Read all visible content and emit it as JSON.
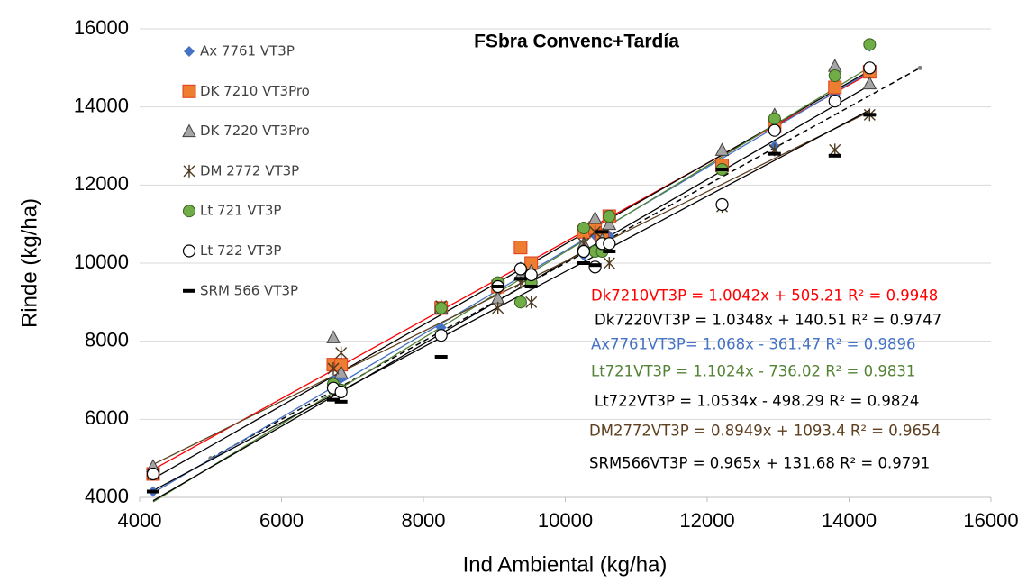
{
  "chart_data": {
    "type": "scatter",
    "title": "FSbra Convenc+Tardía",
    "x_label": "Ind Ambiental (kg/ha)",
    "y_label": "Rinde (kg/ha)",
    "xlim": [
      4000,
      16000
    ],
    "ylim": [
      4000,
      16000
    ],
    "xticks": [
      4000,
      6000,
      8000,
      10000,
      12000,
      14000,
      16000
    ],
    "yticks": [
      4000,
      6000,
      8000,
      10000,
      12000,
      14000,
      16000
    ],
    "grid": true,
    "legend": "upper left",
    "x": [
      4190,
      6730,
      6840,
      8250,
      9050,
      9370,
      9520,
      10260,
      10420,
      10520,
      10620,
      12210,
      12950,
      13800,
      14290
    ],
    "series": [
      {
        "name": "Ax 7761 VT3P",
        "color": "#4472c4",
        "marker": "diamond",
        "values": [
          4150,
          7000,
          7050,
          8350,
          9400,
          9900,
          9700,
          10200,
          10700,
          10500,
          10700,
          12500,
          13000,
          14300,
          15550
        ]
      },
      {
        "name": "DK 7210 VT3Pro",
        "color": "#ed7d31",
        "marker": "square",
        "values": [
          4600,
          7400,
          7400,
          8850,
          9400,
          10400,
          10000,
          10800,
          10900,
          10700,
          11200,
          12500,
          13500,
          14500,
          14900
        ]
      },
      {
        "name": "DK 7220 VT3Pro",
        "color": "#a5a5a5",
        "marker": "triangle",
        "values": [
          4800,
          8100,
          7200,
          8850,
          9100,
          9700,
          9800,
          10500,
          11150,
          10600,
          11000,
          12900,
          13800,
          15050,
          14600
        ]
      },
      {
        "name": "DM 2772 VT3P",
        "color": "#4d3a1f",
        "marker": "asterisk",
        "values": [
          4600,
          7300,
          7700,
          8900,
          8850,
          9500,
          9000,
          10500,
          10800,
          10400,
          10000,
          11450,
          12900,
          12900,
          13800
        ]
      },
      {
        "name": "Lt 721 VT3P",
        "color": "#70ad47",
        "marker": "circle",
        "values": [
          4600,
          6900,
          6750,
          8850,
          9500,
          9000,
          9500,
          10900,
          10300,
          10300,
          11200,
          12400,
          13700,
          14800,
          15600
        ]
      },
      {
        "name": "Lt 722 VT3P",
        "color": "#ffffff",
        "marker": "open-circle",
        "values": [
          4600,
          6800,
          6700,
          8150,
          9400,
          9850,
          9700,
          10300,
          9900,
          10500,
          10500,
          11500,
          13400,
          14150,
          15000
        ]
      },
      {
        "name": "SRM 566 VT3P",
        "color": "#000000",
        "marker": "dash",
        "values": [
          4150,
          6500,
          6450,
          7600,
          9400,
          9600,
          9400,
          10000,
          9950,
          10800,
          10300,
          12400,
          12800,
          12750,
          13800
        ]
      }
    ],
    "trendlines": [
      {
        "label": "Dk7210VT3P = 1.0042x + 505.21 R² = 0.9948",
        "color": "#ff0000",
        "slope": 1.0042,
        "intercept": 505.21
      },
      {
        "label": "Dk7220VT3P = 1.0348x + 140.51 R² = 0.9747",
        "color": "#000000",
        "slope": 1.0348,
        "intercept": 140.51
      },
      {
        "label": "Ax7761VT3P= 1.068x - 361.47 R² = 0.9896",
        "color": "#4472c4",
        "slope": 1.068,
        "intercept": -361.47
      },
      {
        "label": "Lt721VT3P = 1.1024x - 736.02 R² = 0.9831",
        "color": "#548235",
        "slope": 1.1024,
        "intercept": -736.02
      },
      {
        "label": "Lt722VT3P = 1.0534x - 498.29 R² = 0.9824",
        "color": "#000000",
        "slope": 1.0534,
        "intercept": -498.29
      },
      {
        "label": "DM2772VT3P = 0.8949x + 1093.4 R² = 0.9654",
        "color": "#5e4020",
        "slope": 0.8949,
        "intercept": 1093.4
      },
      {
        "label": "SRM566VT3P = 0.965x + 131.68 R² = 0.9791",
        "color": "#000000",
        "slope": 0.965,
        "intercept": 131.68
      }
    ],
    "reference": {
      "x": [
        5000,
        15000
      ],
      "values": [
        5000,
        15000
      ],
      "color": "#808080"
    }
  }
}
